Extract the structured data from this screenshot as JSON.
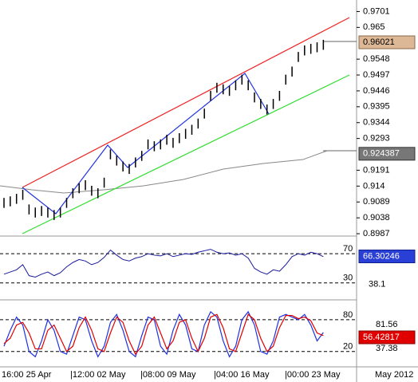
{
  "chart_data": {
    "type": "ohlc",
    "price": {
      "high": [
        0.9102,
        0.9107,
        0.9115,
        0.9128,
        0.9081,
        0.9071,
        0.9076,
        0.9071,
        0.9063,
        0.9071,
        0.9102,
        0.9133,
        0.9149,
        0.9159,
        0.9141,
        0.9133,
        0.9167,
        0.9258,
        0.9238,
        0.9219,
        0.9211,
        0.9232,
        0.9253,
        0.929,
        0.9284,
        0.929,
        0.9305,
        0.9295,
        0.931,
        0.9324,
        0.9337,
        0.9357,
        0.9389,
        0.9446,
        0.9472,
        0.9467,
        0.9462,
        0.948,
        0.9498,
        0.948,
        0.9441,
        0.942,
        0.9402,
        0.942,
        0.9446,
        0.9498,
        0.9524,
        0.9571,
        0.9592,
        0.9597,
        0.9602,
        0.961
      ],
      "low": [
        0.907,
        0.9075,
        0.9083,
        0.9096,
        0.9049,
        0.9039,
        0.9044,
        0.9039,
        0.9031,
        0.9039,
        0.907,
        0.9101,
        0.9117,
        0.9127,
        0.9109,
        0.9101,
        0.9135,
        0.9226,
        0.9206,
        0.9187,
        0.9179,
        0.92,
        0.9221,
        0.9258,
        0.9252,
        0.9258,
        0.9273,
        0.9263,
        0.9278,
        0.9292,
        0.9305,
        0.9325,
        0.9357,
        0.9414,
        0.944,
        0.9435,
        0.943,
        0.9448,
        0.9466,
        0.9448,
        0.9409,
        0.9388,
        0.937,
        0.9388,
        0.9414,
        0.9466,
        0.9492,
        0.9539,
        0.956,
        0.9565,
        0.957,
        0.9578
      ],
      "ylim": [
        0.8982,
        0.9738
      ],
      "yticks": [
        0.9701,
        0.965,
        0.9548,
        0.9497,
        0.9446,
        0.9395,
        0.9344,
        0.9293,
        0.9191,
        0.914,
        0.9089,
        0.9038,
        0.8987
      ],
      "last_price": 0.96021,
      "ma_value": 0.924387
    },
    "rsi": {
      "values": [
        42,
        45,
        48,
        55,
        40,
        38,
        42,
        45,
        40,
        44,
        52,
        58,
        62,
        60,
        55,
        58,
        65,
        75,
        68,
        62,
        60,
        64,
        66,
        70,
        68,
        67,
        70,
        66,
        68,
        70,
        69,
        72,
        74,
        76,
        72,
        70,
        71,
        68,
        70,
        64,
        50,
        45,
        42,
        48,
        46,
        55,
        66,
        70,
        68,
        72,
        70,
        66
      ],
      "ylim": [
        8,
        93
      ],
      "yticks": [
        70,
        30
      ],
      "level_label": "38.1",
      "last_value": 66.30246,
      "color": "#1a1a9c"
    },
    "stochastic": {
      "k": [
        30,
        60,
        85,
        70,
        20,
        10,
        40,
        80,
        60,
        20,
        15,
        50,
        85,
        80,
        40,
        10,
        30,
        75,
        90,
        60,
        20,
        10,
        50,
        85,
        80,
        30,
        15,
        60,
        90,
        70,
        25,
        20,
        70,
        95,
        85,
        40,
        10,
        30,
        80,
        95,
        70,
        20,
        15,
        40,
        85,
        90,
        85,
        80,
        90,
        70,
        40,
        56
      ],
      "d": [
        35,
        45,
        70,
        75,
        55,
        25,
        25,
        60,
        70,
        45,
        20,
        30,
        65,
        85,
        60,
        25,
        20,
        55,
        85,
        75,
        40,
        15,
        30,
        70,
        85,
        55,
        25,
        40,
        75,
        80,
        45,
        20,
        45,
        85,
        90,
        65,
        25,
        20,
        55,
        90,
        80,
        45,
        20,
        30,
        65,
        88,
        88,
        82,
        85,
        78,
        55,
        50
      ],
      "ylim": [
        -9,
        116
      ],
      "yticks": [
        80,
        20
      ],
      "labels": [
        "81.56",
        "37.38"
      ],
      "last_value": 56.42817,
      "k_color": "#2030e0",
      "d_color": "#e00000"
    },
    "x_labels": [
      "16:00 25 Apr",
      "|12:00 02 May",
      "|08:00 09 May",
      "|04:00 16 May",
      "|00:00 23 May",
      "May 2012"
    ]
  }
}
